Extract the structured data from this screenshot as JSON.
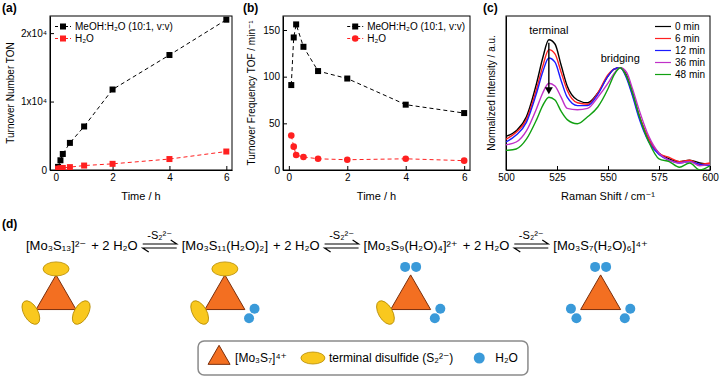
{
  "chart_data": [
    {
      "type": "line",
      "title": "(a)",
      "x_label": "Time / h",
      "y_label": "Turnover Number TON",
      "x": [
        0.083,
        0.167,
        0.25,
        0.5,
        1,
        2,
        4,
        6
      ],
      "series": [
        {
          "name": "MeOH:H₂O (10:1, v:v)",
          "color": "#000000",
          "marker": "square",
          "line_style": "dashed",
          "values": [
            455,
            1420,
            2340,
            3960,
            6360,
            11760,
            16800,
            21960
          ]
        },
        {
          "name": "H₂O",
          "color": "#ff2020",
          "marker": "square",
          "line_style": "dashed",
          "values": [
            200,
            250,
            300,
            420,
            650,
            900,
            1600,
            2700
          ]
        }
      ],
      "xlim": [
        -0.2,
        6.2
      ],
      "xticks": [
        0,
        2,
        4,
        6
      ],
      "ylim": [
        0,
        22500
      ],
      "yticks": [
        0,
        {
          "value": 10000,
          "label": "1x10⁴"
        },
        {
          "value": 20000,
          "label": "2x10⁴"
        }
      ],
      "legend": "upper left"
    },
    {
      "type": "line",
      "title": "(b)",
      "x_label": "Time / h",
      "y_label": "Turnover Frequency TOF / min⁻¹",
      "x": [
        0.083,
        0.167,
        0.25,
        0.5,
        1,
        2,
        4,
        6
      ],
      "series": [
        {
          "name": "MeOH:H₂O (10:1, v:v)",
          "color": "#000000",
          "marker": "square",
          "line_style": "dashed",
          "values": [
            91,
            142,
            156,
            132,
            106,
            98,
            70,
            61
          ]
        },
        {
          "name": "H₂O",
          "color": "#ff2020",
          "marker": "circle",
          "line_style": "dashed",
          "values": [
            37,
            25,
            16,
            14,
            12,
            11,
            12,
            10
          ]
        }
      ],
      "xlim": [
        -0.2,
        6.2
      ],
      "xticks": [
        0,
        2,
        4,
        6
      ],
      "ylim": [
        0,
        165
      ],
      "yticks": [
        0,
        50,
        100,
        150
      ],
      "legend": "upper right"
    },
    {
      "type": "line",
      "title": "(c)",
      "x_label": "Raman Shift / cm⁻¹",
      "y_label": "Normalized Intensity / a.u.",
      "x": [
        500,
        505,
        510,
        515,
        518,
        521,
        524,
        527,
        530,
        535,
        540,
        545,
        550,
        553,
        556,
        559,
        562,
        565,
        570,
        575,
        580,
        585,
        590,
        595,
        600
      ],
      "series": [
        {
          "name": "0 min",
          "color": "#000000",
          "values": [
            0.24,
            0.28,
            0.38,
            0.62,
            0.8,
            0.93,
            0.9,
            0.75,
            0.6,
            0.5,
            0.48,
            0.55,
            0.67,
            0.72,
            0.73,
            0.68,
            0.55,
            0.4,
            0.22,
            0.12,
            0.08,
            0.06,
            0.07,
            0.05,
            0.04
          ]
        },
        {
          "name": "6 min",
          "color": "#ff2020",
          "values": [
            0.22,
            0.27,
            0.36,
            0.58,
            0.74,
            0.86,
            0.83,
            0.7,
            0.57,
            0.48,
            0.47,
            0.55,
            0.68,
            0.72,
            0.73,
            0.67,
            0.54,
            0.4,
            0.22,
            0.12,
            0.09,
            0.06,
            0.07,
            0.04,
            0.05
          ]
        },
        {
          "name": "12 min",
          "color": "#1a1aff",
          "values": [
            0.2,
            0.25,
            0.34,
            0.55,
            0.7,
            0.8,
            0.77,
            0.64,
            0.52,
            0.46,
            0.46,
            0.54,
            0.67,
            0.72,
            0.73,
            0.66,
            0.53,
            0.38,
            0.2,
            0.11,
            0.07,
            0.05,
            0.06,
            0.04,
            0.03
          ]
        },
        {
          "name": "36 min",
          "color": "#c030c8",
          "values": [
            0.18,
            0.2,
            0.28,
            0.44,
            0.55,
            0.62,
            0.6,
            0.52,
            0.44,
            0.43,
            0.44,
            0.52,
            0.62,
            0.69,
            0.73,
            0.7,
            0.58,
            0.44,
            0.24,
            0.12,
            0.07,
            0.05,
            0.06,
            0.03,
            0.04
          ]
        },
        {
          "name": "48 min",
          "color": "#11a011",
          "values": [
            0.14,
            0.15,
            0.22,
            0.36,
            0.46,
            0.52,
            0.5,
            0.42,
            0.36,
            0.33,
            0.38,
            0.45,
            0.58,
            0.68,
            0.73,
            0.67,
            0.55,
            0.4,
            0.2,
            0.08,
            0.06,
            0.02,
            0.05,
            0.0,
            0.03
          ]
        }
      ],
      "xlim": [
        500,
        600
      ],
      "xticks": [
        500,
        525,
        550,
        575,
        600
      ],
      "ylim": [
        0,
        1.1
      ],
      "yticks": [],
      "tick_labels": "x",
      "legend": "upper right",
      "annotations": [
        {
          "text": "terminal",
          "x": 521
        },
        {
          "text": "bridging",
          "x": 556
        }
      ]
    }
  ],
  "scheme": {
    "label": "(d)",
    "steps": [
      {
        "species": "[Mo₃S₁₃]²⁻",
        "reagent": "+ 2 H₂O",
        "terminal_disulfides": 3,
        "waters": 0
      },
      {
        "species": "[Mo₃S₁₁(H₂O)₂]",
        "reagent": "+ 2 H₂O",
        "terminal_disulfides": 2,
        "waters": 2
      },
      {
        "species": "[Mo₃S₉(H₂O)₄]²⁺",
        "reagent": "+ 2 H₂O",
        "terminal_disulfides": 1,
        "waters": 4
      },
      {
        "species": "[Mo₃S₇(H₂O)₆]⁴⁺",
        "terminal_disulfides": 0,
        "waters": 6
      }
    ],
    "arrows": [
      "-S₂²⁻",
      "-S₂²⁻",
      "-S₂²⁻"
    ],
    "legend": {
      "core": "[Mo₃S₇]⁴⁺",
      "disulfide": "terminal disulfide (S₂²⁻)",
      "water": "H₂O"
    }
  }
}
